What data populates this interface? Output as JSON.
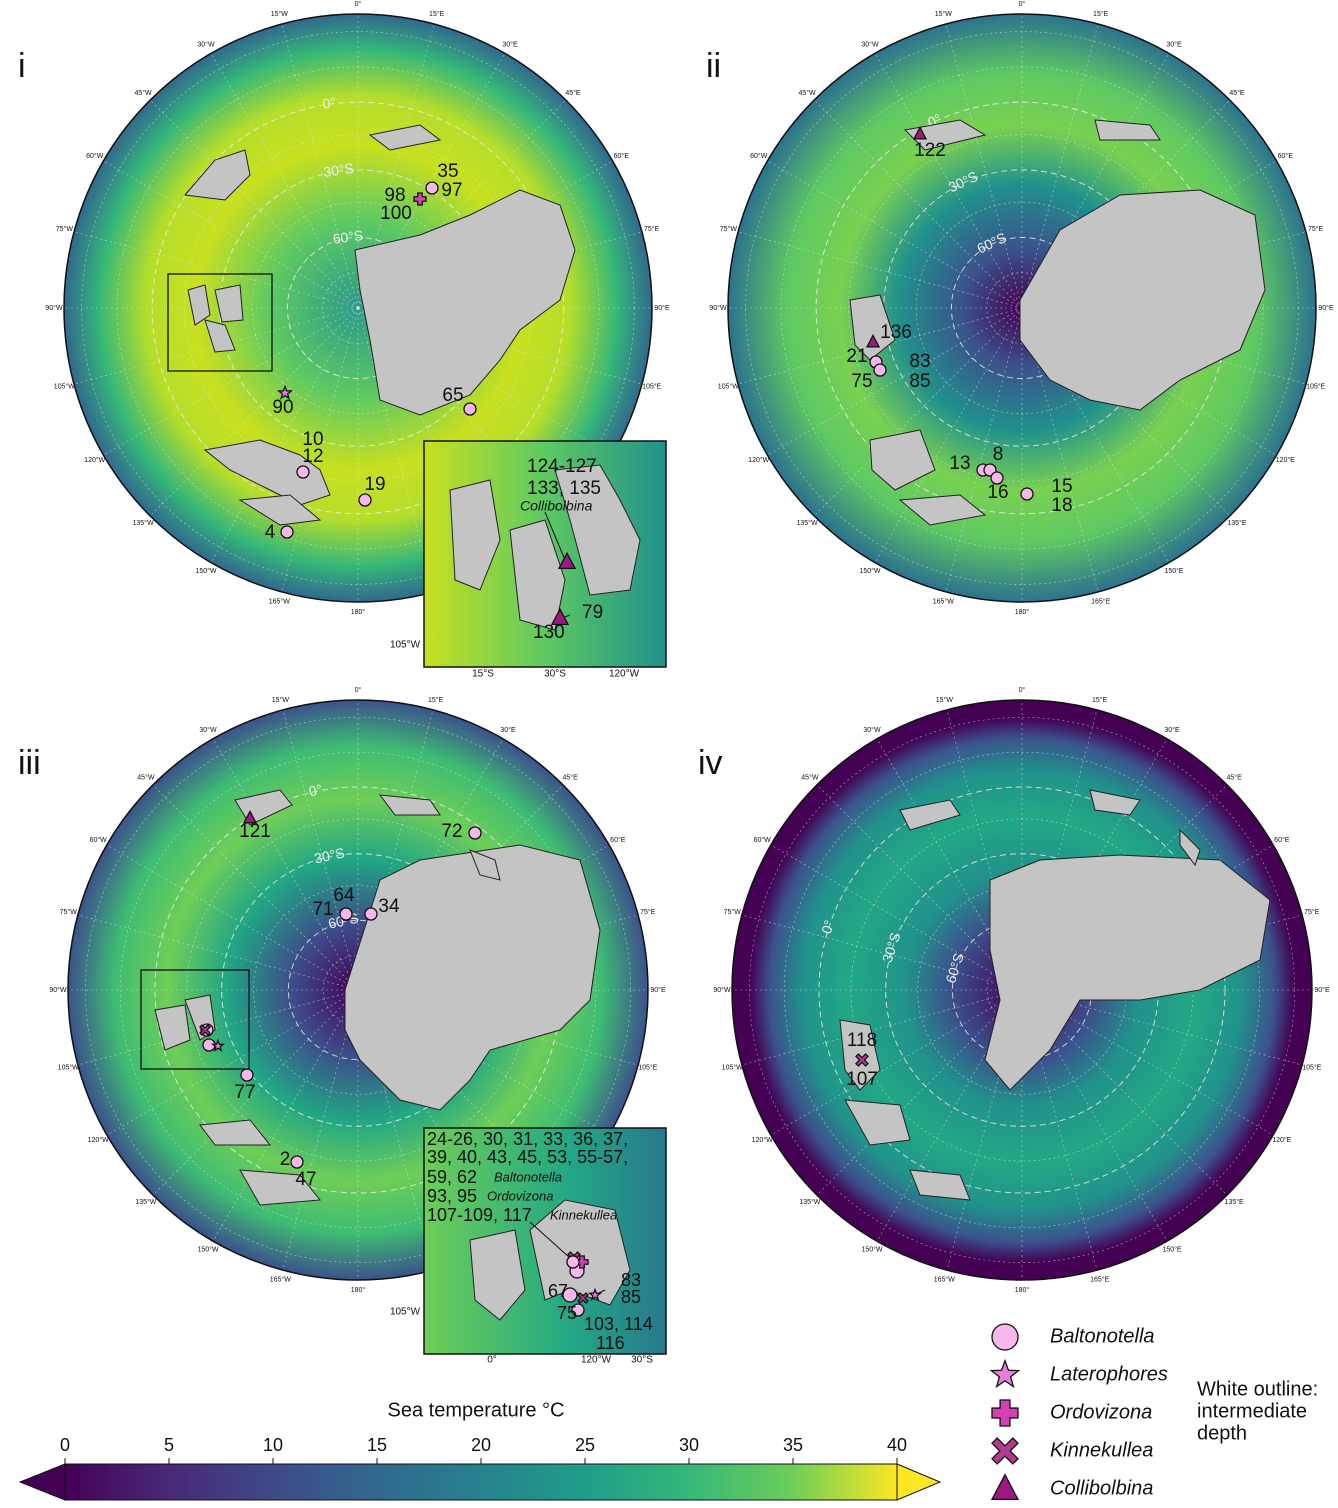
{
  "longitude_labels": [
    "0°",
    "15°E",
    "30°E",
    "45°E",
    "60°E",
    "75°E",
    "90°E",
    "105°E",
    "120°E",
    "135°E",
    "150°E",
    "165°E",
    "180°",
    "165°W",
    "150°W",
    "135°W",
    "120°W",
    "105°W",
    "90°W",
    "75°W",
    "60°W",
    "45°W",
    "30°W",
    "15°W"
  ],
  "latitude_labels": [
    "0°",
    "30°S",
    "60°S"
  ],
  "panels": [
    {
      "label": "i",
      "sites": [
        "35",
        "97",
        "98",
        "100",
        "65",
        "90",
        "10",
        "12",
        "19",
        "4"
      ],
      "inset": {
        "texts": [
          "124-127",
          "133, 135",
          "Collibolbina",
          "79",
          "130"
        ],
        "axis_labels": [
          "105°W",
          "15°S",
          "30°S",
          "120°W"
        ]
      }
    },
    {
      "label": "ii",
      "sites": [
        "122",
        "136",
        "21",
        "75",
        "83",
        "85",
        "13",
        "8",
        "16",
        "15",
        "18"
      ]
    },
    {
      "label": "iii",
      "sites": [
        "121",
        "72",
        "64",
        "71",
        "34",
        "77",
        "2",
        "47"
      ],
      "inset": {
        "texts": [
          "24-26, 30, 31, 33, 36, 37,",
          "39, 40, 43, 45, 53, 55-57,",
          "59, 62",
          "Baltonotella",
          "93, 95",
          "Ordovizona",
          "107-109, 117",
          "Kinnekullea",
          "67",
          "75",
          "83",
          "85",
          "103, 114",
          "116"
        ],
        "axis_labels": [
          "105°W",
          "0°",
          "120°W",
          "30°S"
        ]
      }
    },
    {
      "label": "iv",
      "sites": [
        "118",
        "107"
      ]
    }
  ],
  "colorbar": {
    "title": "Sea temperature °C",
    "range": [
      0,
      40
    ],
    "ticks": [
      0,
      5,
      10,
      15,
      20,
      25,
      30,
      35,
      40
    ]
  },
  "legend": {
    "items": [
      "Baltonotella",
      "Laterophores",
      "Ordovizona",
      "Kinnekullea",
      "Collibolbina"
    ],
    "note": [
      "White outline:",
      "intermediate",
      "depth"
    ]
  }
}
